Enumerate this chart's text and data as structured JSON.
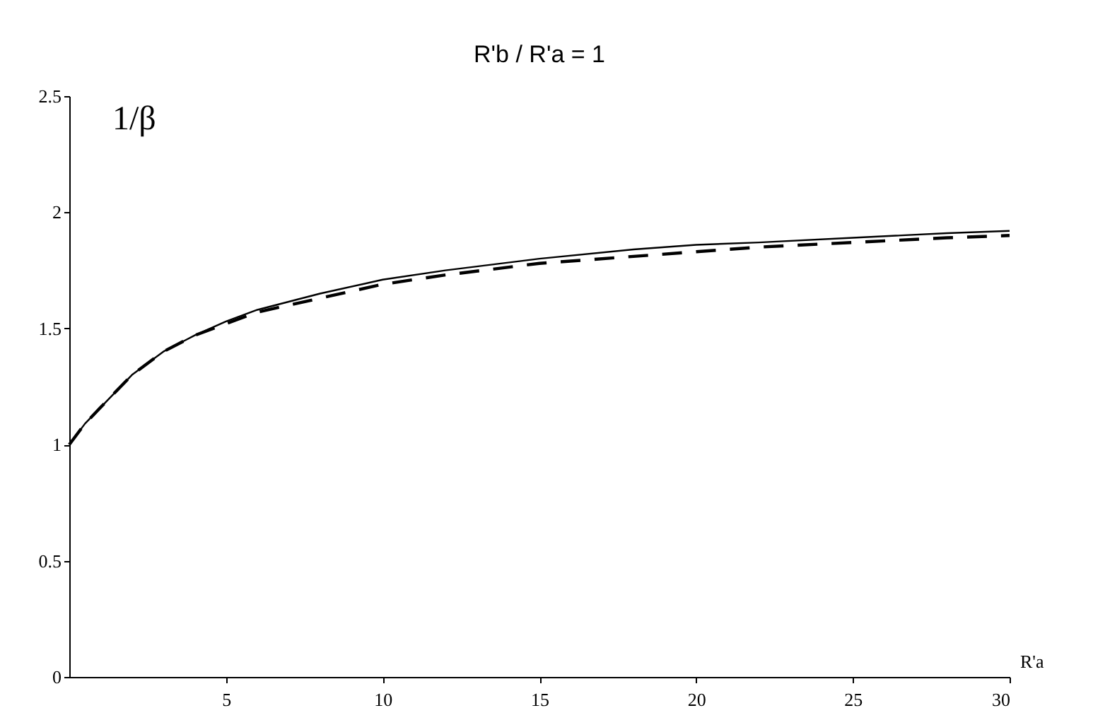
{
  "chart_data": {
    "type": "line",
    "title": "R'b / R'a = 1",
    "xlabel": "R'a",
    "ylabel": "1/β",
    "xlim": [
      0,
      30
    ],
    "xticks": [
      5,
      10,
      15,
      20,
      25,
      30
    ],
    "ylim": [
      0,
      2.5
    ],
    "yticks": [
      0,
      0.5,
      1,
      1.5,
      2,
      2.5
    ],
    "grid": false,
    "series": [
      {
        "color": "#000000",
        "line_style": "solid",
        "x": [
          0,
          0.5,
          1,
          2,
          3,
          4,
          5,
          6,
          8,
          10,
          12,
          15,
          18,
          20,
          22,
          25,
          28,
          30
        ],
        "values": [
          1.0,
          1.09,
          1.16,
          1.3,
          1.4,
          1.47,
          1.53,
          1.58,
          1.65,
          1.71,
          1.75,
          1.8,
          1.84,
          1.86,
          1.87,
          1.89,
          1.91,
          1.92
        ]
      },
      {
        "color": "#000000",
        "line_style": "dashed",
        "x": [
          0,
          0.5,
          1,
          2,
          3,
          4,
          5,
          6,
          8,
          10,
          12,
          15,
          18,
          20,
          22,
          25,
          28,
          30
        ],
        "values": [
          1.0,
          1.09,
          1.16,
          1.3,
          1.4,
          1.47,
          1.52,
          1.57,
          1.63,
          1.69,
          1.73,
          1.78,
          1.81,
          1.83,
          1.85,
          1.87,
          1.89,
          1.9
        ]
      }
    ]
  }
}
